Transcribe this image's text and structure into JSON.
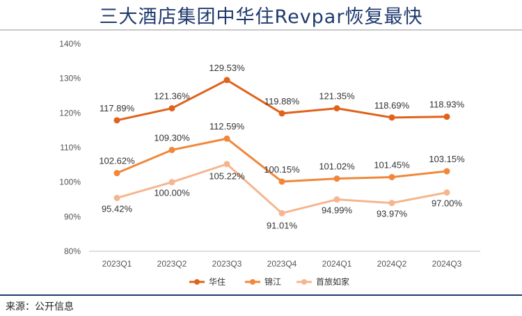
{
  "header": {
    "title": "三大酒店集团中华住Revpar恢复最快"
  },
  "footer": {
    "source": "来源：公开信息"
  },
  "chart_data": {
    "type": "line",
    "title": "",
    "xlabel": "",
    "ylabel": "",
    "categories": [
      "2023Q1",
      "2023Q2",
      "2023Q3",
      "2023Q4",
      "2024Q1",
      "2024Q2",
      "2024Q3"
    ],
    "y_ticks": [
      "80%",
      "90%",
      "100%",
      "110%",
      "120%",
      "130%",
      "140%"
    ],
    "ylim": [
      80,
      140
    ],
    "grid": "none",
    "legend_position": "bottom",
    "series": [
      {
        "name": "华住",
        "color": "#e0621c",
        "values": [
          117.89,
          121.36,
          129.53,
          119.88,
          121.35,
          118.69,
          118.93
        ],
        "labels": [
          "117.89%",
          "121.36%",
          "129.53%",
          "119.88%",
          "121.35%",
          "118.69%",
          "118.93%"
        ]
      },
      {
        "name": "锦江",
        "color": "#f0873a",
        "values": [
          102.62,
          109.3,
          112.59,
          100.15,
          101.02,
          101.45,
          103.15
        ],
        "labels": [
          "102.62%",
          "109.30%",
          "112.59%",
          "100.15%",
          "101.02%",
          "101.45%",
          "103.15%"
        ]
      },
      {
        "name": "首旅如家",
        "color": "#f6b58e",
        "values": [
          95.42,
          100.0,
          105.22,
          91.01,
          94.99,
          93.97,
          97.0
        ],
        "labels": [
          "95.42%",
          "100.00%",
          "105.22%",
          "91.01%",
          "94.99%",
          "93.97%",
          "97.00%"
        ]
      }
    ]
  }
}
